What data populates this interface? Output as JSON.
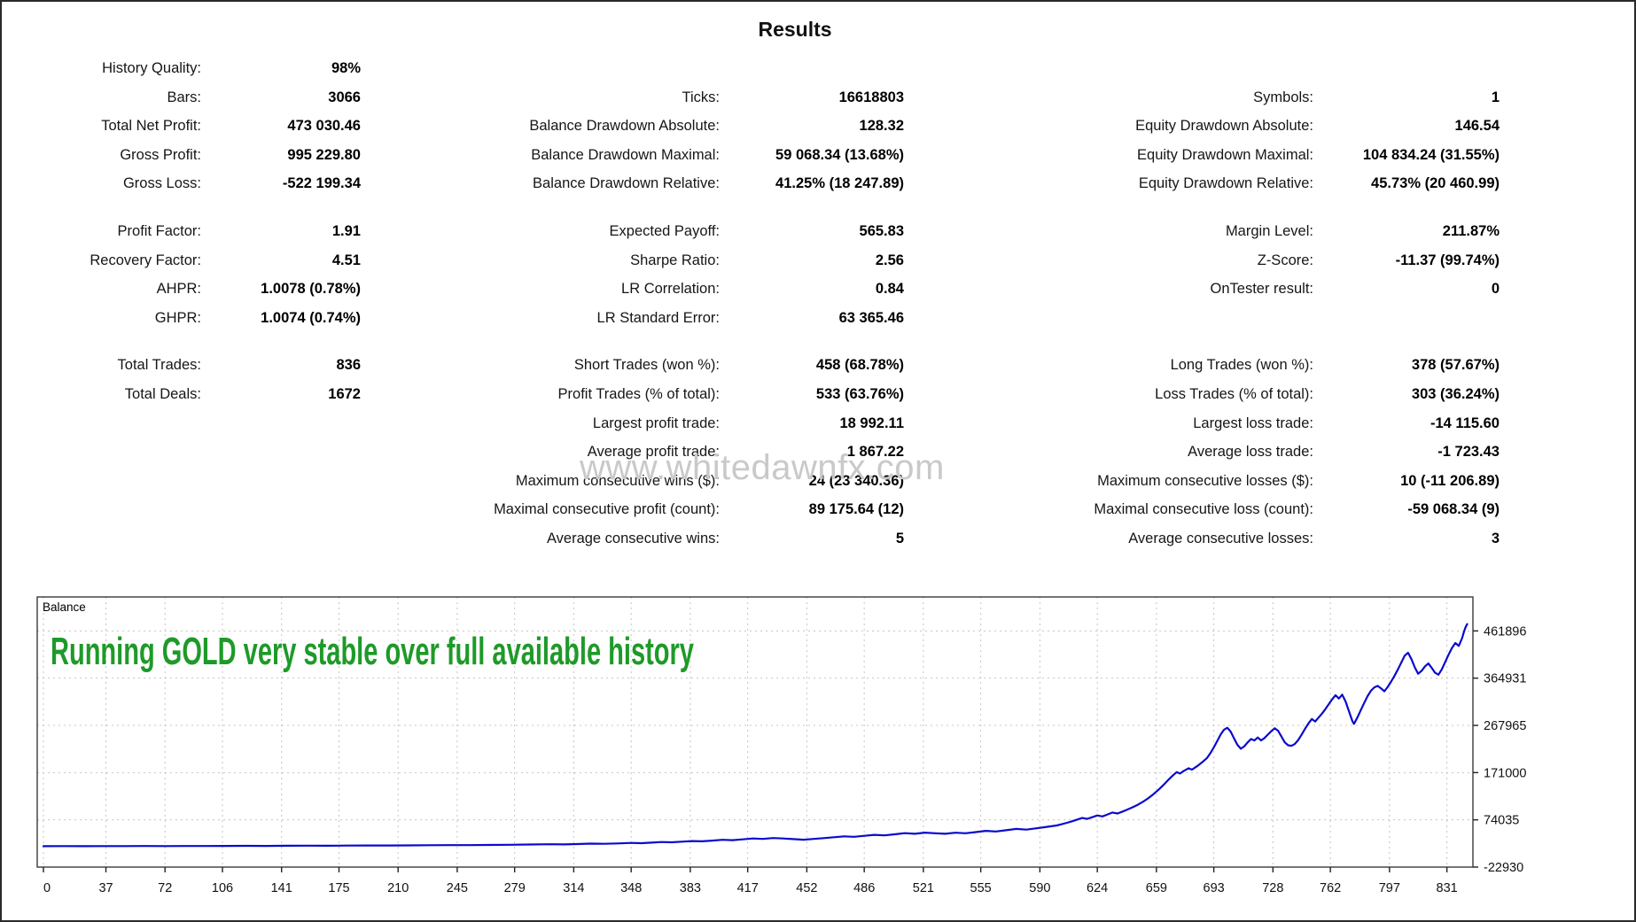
{
  "title": "Results",
  "watermark": "www.whitedawnfx.com",
  "stats_blocks": [
    [
      [
        "History Quality:",
        "98%",
        "",
        "",
        "",
        ""
      ],
      [
        "Bars:",
        "3066",
        "Ticks:",
        "16618803",
        "Symbols:",
        "1"
      ],
      [
        "Total Net Profit:",
        "473 030.46",
        "Balance Drawdown Absolute:",
        "128.32",
        "Equity Drawdown Absolute:",
        "146.54"
      ],
      [
        "Gross Profit:",
        "995 229.80",
        "Balance Drawdown Maximal:",
        "59 068.34 (13.68%)",
        "Equity Drawdown Maximal:",
        "104 834.24 (31.55%)"
      ],
      [
        "Gross Loss:",
        "-522 199.34",
        "Balance Drawdown Relative:",
        "41.25% (18 247.89)",
        "Equity Drawdown Relative:",
        "45.73% (20 460.99)"
      ]
    ],
    [
      [
        "Profit Factor:",
        "1.91",
        "Expected Payoff:",
        "565.83",
        "Margin Level:",
        "211.87%"
      ],
      [
        "Recovery Factor:",
        "4.51",
        "Sharpe Ratio:",
        "2.56",
        "Z-Score:",
        "-11.37 (99.74%)"
      ],
      [
        "AHPR:",
        "1.0078 (0.78%)",
        "LR Correlation:",
        "0.84",
        "OnTester result:",
        "0"
      ],
      [
        "GHPR:",
        "1.0074 (0.74%)",
        "LR Standard Error:",
        "63 365.46",
        "",
        ""
      ]
    ],
    [
      [
        "Total Trades:",
        "836",
        "Short Trades (won %):",
        "458 (68.78%)",
        "Long Trades (won %):",
        "378 (57.67%)"
      ],
      [
        "Total Deals:",
        "1672",
        "Profit Trades (% of total):",
        "533 (63.76%)",
        "Loss Trades (% of total):",
        "303 (36.24%)"
      ],
      [
        "",
        "",
        "Largest profit trade:",
        "18 992.11",
        "Largest loss trade:",
        "-14 115.60"
      ],
      [
        "",
        "",
        "Average profit trade:",
        "1 867.22",
        "Average loss trade:",
        "-1 723.43"
      ],
      [
        "",
        "",
        "Maximum consecutive wins ($):",
        "24 (23 340.36)",
        "Maximum consecutive losses ($):",
        "10 (-11 206.89)"
      ],
      [
        "",
        "",
        "Maximal consecutive profit (count):",
        "89 175.64 (12)",
        "Maximal consecutive loss (count):",
        "-59 068.34 (9)"
      ],
      [
        "",
        "",
        "Average consecutive wins:",
        "5",
        "Average consecutive losses:",
        "3"
      ]
    ]
  ],
  "chart_data": {
    "type": "line",
    "title": "Balance",
    "annotation": "Running GOLD very stable over full available history",
    "annotation_color": "#1e9a28",
    "line_color": "#0a0acd",
    "grid": true,
    "legend_position": "top-left-inside",
    "x_range": [
      0,
      846
    ],
    "y_range": [
      -22930,
      531600
    ],
    "x_tick_labels": [
      "0",
      "37",
      "72",
      "106",
      "141",
      "175",
      "210",
      "245",
      "279",
      "314",
      "348",
      "383",
      "417",
      "452",
      "486",
      "521",
      "555",
      "590",
      "624",
      "659",
      "693",
      "728",
      "762",
      "797",
      "831"
    ],
    "y_tick_labels": [
      "461896",
      "364931",
      "267965",
      "171000",
      "74035",
      "-22930"
    ],
    "y_tick_values": [
      461896,
      364931,
      267965,
      171000,
      74035,
      -22930
    ],
    "x_tick_values": [
      0,
      37,
      72,
      106,
      141,
      175,
      210,
      245,
      279,
      314,
      348,
      383,
      417,
      452,
      486,
      521,
      555,
      590,
      624,
      659,
      693,
      728,
      762,
      797,
      831
    ],
    "series": [
      {
        "name": "Balance",
        "points": [
          [
            0,
            20000
          ],
          [
            12,
            20100
          ],
          [
            24,
            20050
          ],
          [
            36,
            20200
          ],
          [
            48,
            20150
          ],
          [
            60,
            20300
          ],
          [
            72,
            20250
          ],
          [
            84,
            20400
          ],
          [
            96,
            20350
          ],
          [
            108,
            20500
          ],
          [
            120,
            20650
          ],
          [
            132,
            20600
          ],
          [
            144,
            20800
          ],
          [
            156,
            21000
          ],
          [
            168,
            20950
          ],
          [
            180,
            21200
          ],
          [
            192,
            21400
          ],
          [
            204,
            21350
          ],
          [
            216,
            21600
          ],
          [
            228,
            21900
          ],
          [
            240,
            22200
          ],
          [
            252,
            22100
          ],
          [
            264,
            22500
          ],
          [
            276,
            22900
          ],
          [
            288,
            23400
          ],
          [
            300,
            24000
          ],
          [
            308,
            23700
          ],
          [
            316,
            24400
          ],
          [
            324,
            25200
          ],
          [
            332,
            24800
          ],
          [
            340,
            25700
          ],
          [
            348,
            26700
          ],
          [
            354,
            26200
          ],
          [
            360,
            27300
          ],
          [
            366,
            28500
          ],
          [
            372,
            27900
          ],
          [
            378,
            29200
          ],
          [
            384,
            30600
          ],
          [
            390,
            30000
          ],
          [
            396,
            31500
          ],
          [
            402,
            33100
          ],
          [
            408,
            32300
          ],
          [
            414,
            34000
          ],
          [
            420,
            35800
          ],
          [
            426,
            34900
          ],
          [
            432,
            36700
          ],
          [
            438,
            35800
          ],
          [
            444,
            34500
          ],
          [
            450,
            33200
          ],
          [
            456,
            34800
          ],
          [
            462,
            36500
          ],
          [
            468,
            38300
          ],
          [
            474,
            40200
          ],
          [
            480,
            39200
          ],
          [
            486,
            41200
          ],
          [
            492,
            43300
          ],
          [
            498,
            42200
          ],
          [
            504,
            44400
          ],
          [
            510,
            46700
          ],
          [
            516,
            45500
          ],
          [
            522,
            47800
          ],
          [
            528,
            46600
          ],
          [
            534,
            45400
          ],
          [
            540,
            47700
          ],
          [
            546,
            46500
          ],
          [
            552,
            48900
          ],
          [
            558,
            51400
          ],
          [
            564,
            50100
          ],
          [
            570,
            52700
          ],
          [
            576,
            55400
          ],
          [
            582,
            54000
          ],
          [
            588,
            56700
          ],
          [
            594,
            59600
          ],
          [
            600,
            62600
          ],
          [
            603,
            65000
          ],
          [
            606,
            68000
          ],
          [
            609,
            71000
          ],
          [
            612,
            74500
          ],
          [
            615,
            78000
          ],
          [
            618,
            76000
          ],
          [
            621,
            79500
          ],
          [
            624,
            83000
          ],
          [
            627,
            81000
          ],
          [
            630,
            85000
          ],
          [
            633,
            89000
          ],
          [
            636,
            87000
          ],
          [
            639,
            91000
          ],
          [
            642,
            95500
          ],
          [
            645,
            100000
          ],
          [
            648,
            105000
          ],
          [
            651,
            111000
          ],
          [
            654,
            118000
          ],
          [
            657,
            126000
          ],
          [
            660,
            135000
          ],
          [
            663,
            145000
          ],
          [
            666,
            156000
          ],
          [
            669,
            166000
          ],
          [
            671,
            172000
          ],
          [
            673,
            169000
          ],
          [
            675,
            174000
          ],
          [
            678,
            180000
          ],
          [
            680,
            177000
          ],
          [
            683,
            184000
          ],
          [
            686,
            192000
          ],
          [
            689,
            201000
          ],
          [
            691,
            211000
          ],
          [
            693,
            223000
          ],
          [
            695,
            236000
          ],
          [
            697,
            249000
          ],
          [
            699,
            259000
          ],
          [
            701,
            263000
          ],
          [
            703,
            255000
          ],
          [
            705,
            241000
          ],
          [
            707,
            228000
          ],
          [
            709,
            220000
          ],
          [
            711,
            225000
          ],
          [
            713,
            233000
          ],
          [
            715,
            240000
          ],
          [
            717,
            237000
          ],
          [
            719,
            243000
          ],
          [
            721,
            237000
          ],
          [
            723,
            242000
          ],
          [
            725,
            249000
          ],
          [
            727,
            256000
          ],
          [
            729,
            262000
          ],
          [
            731,
            257000
          ],
          [
            733,
            245000
          ],
          [
            735,
            233000
          ],
          [
            737,
            227000
          ],
          [
            739,
            226000
          ],
          [
            741,
            230000
          ],
          [
            743,
            238000
          ],
          [
            745,
            249000
          ],
          [
            747,
            261000
          ],
          [
            749,
            272000
          ],
          [
            751,
            281000
          ],
          [
            753,
            276000
          ],
          [
            755,
            284000
          ],
          [
            757,
            292000
          ],
          [
            759,
            301000
          ],
          [
            761,
            311000
          ],
          [
            763,
            321000
          ],
          [
            765,
            330000
          ],
          [
            767,
            323000
          ],
          [
            769,
            331000
          ],
          [
            771,
            317000
          ],
          [
            773,
            297000
          ],
          [
            775,
            277000
          ],
          [
            776,
            271000
          ],
          [
            778,
            284000
          ],
          [
            780,
            299000
          ],
          [
            782,
            314000
          ],
          [
            784,
            328000
          ],
          [
            786,
            339000
          ],
          [
            788,
            346000
          ],
          [
            790,
            349000
          ],
          [
            792,
            344000
          ],
          [
            794,
            338000
          ],
          [
            796,
            347000
          ],
          [
            798,
            358000
          ],
          [
            800,
            370000
          ],
          [
            802,
            383000
          ],
          [
            804,
            397000
          ],
          [
            806,
            411000
          ],
          [
            808,
            417000
          ],
          [
            810,
            404000
          ],
          [
            812,
            387000
          ],
          [
            814,
            374000
          ],
          [
            816,
            380000
          ],
          [
            818,
            389000
          ],
          [
            820,
            395000
          ],
          [
            822,
            386000
          ],
          [
            824,
            376000
          ],
          [
            826,
            372000
          ],
          [
            828,
            383000
          ],
          [
            830,
            398000
          ],
          [
            832,
            413000
          ],
          [
            834,
            427000
          ],
          [
            836,
            437000
          ],
          [
            838,
            431000
          ],
          [
            840,
            447000
          ],
          [
            841,
            459000
          ],
          [
            842,
            469000
          ],
          [
            843,
            476000
          ]
        ]
      }
    ]
  }
}
